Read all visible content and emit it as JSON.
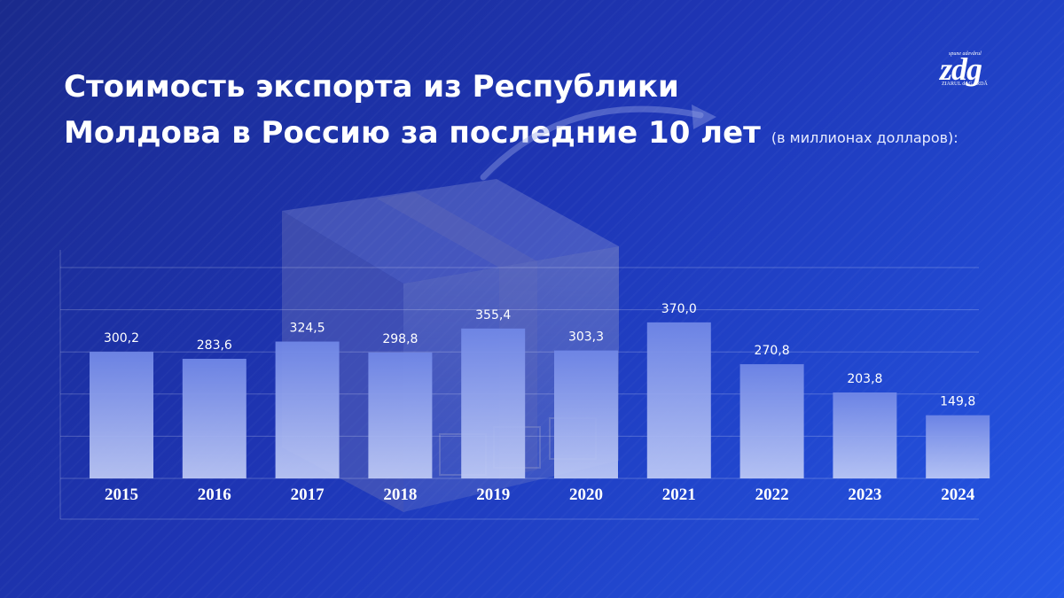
{
  "header": {
    "title_line1": "Стоимость экспорта из Республики",
    "title_line2": "Молдова в Россию за последние 10 лет",
    "subtitle": "(в миллионах долларов):"
  },
  "logo": {
    "tagline": "spune adevărul",
    "name": "zdg",
    "subname": "ZIARUL de GARDĂ"
  },
  "colors": {
    "background_start": "#1a2a8c",
    "background_end": "#2457e6",
    "bar_top": "#6f86e6",
    "bar_bottom": "#b9c6f5",
    "text": "#ffffff"
  },
  "chart_data": {
    "type": "bar",
    "categories": [
      "2015",
      "2016",
      "2017",
      "2018",
      "2019",
      "2020",
      "2021",
      "2022",
      "2023",
      "2024"
    ],
    "values": [
      300.2,
      283.6,
      324.5,
      298.8,
      355.4,
      303.3,
      370.0,
      270.8,
      203.8,
      149.8
    ],
    "value_labels": [
      "300,2",
      "283,6",
      "324,5",
      "298,8",
      "355,4",
      "303,3",
      "370,0",
      "270,8",
      "203,8",
      "149,8"
    ],
    "ylim": [
      0,
      500
    ],
    "grid": true,
    "legend": "none"
  }
}
